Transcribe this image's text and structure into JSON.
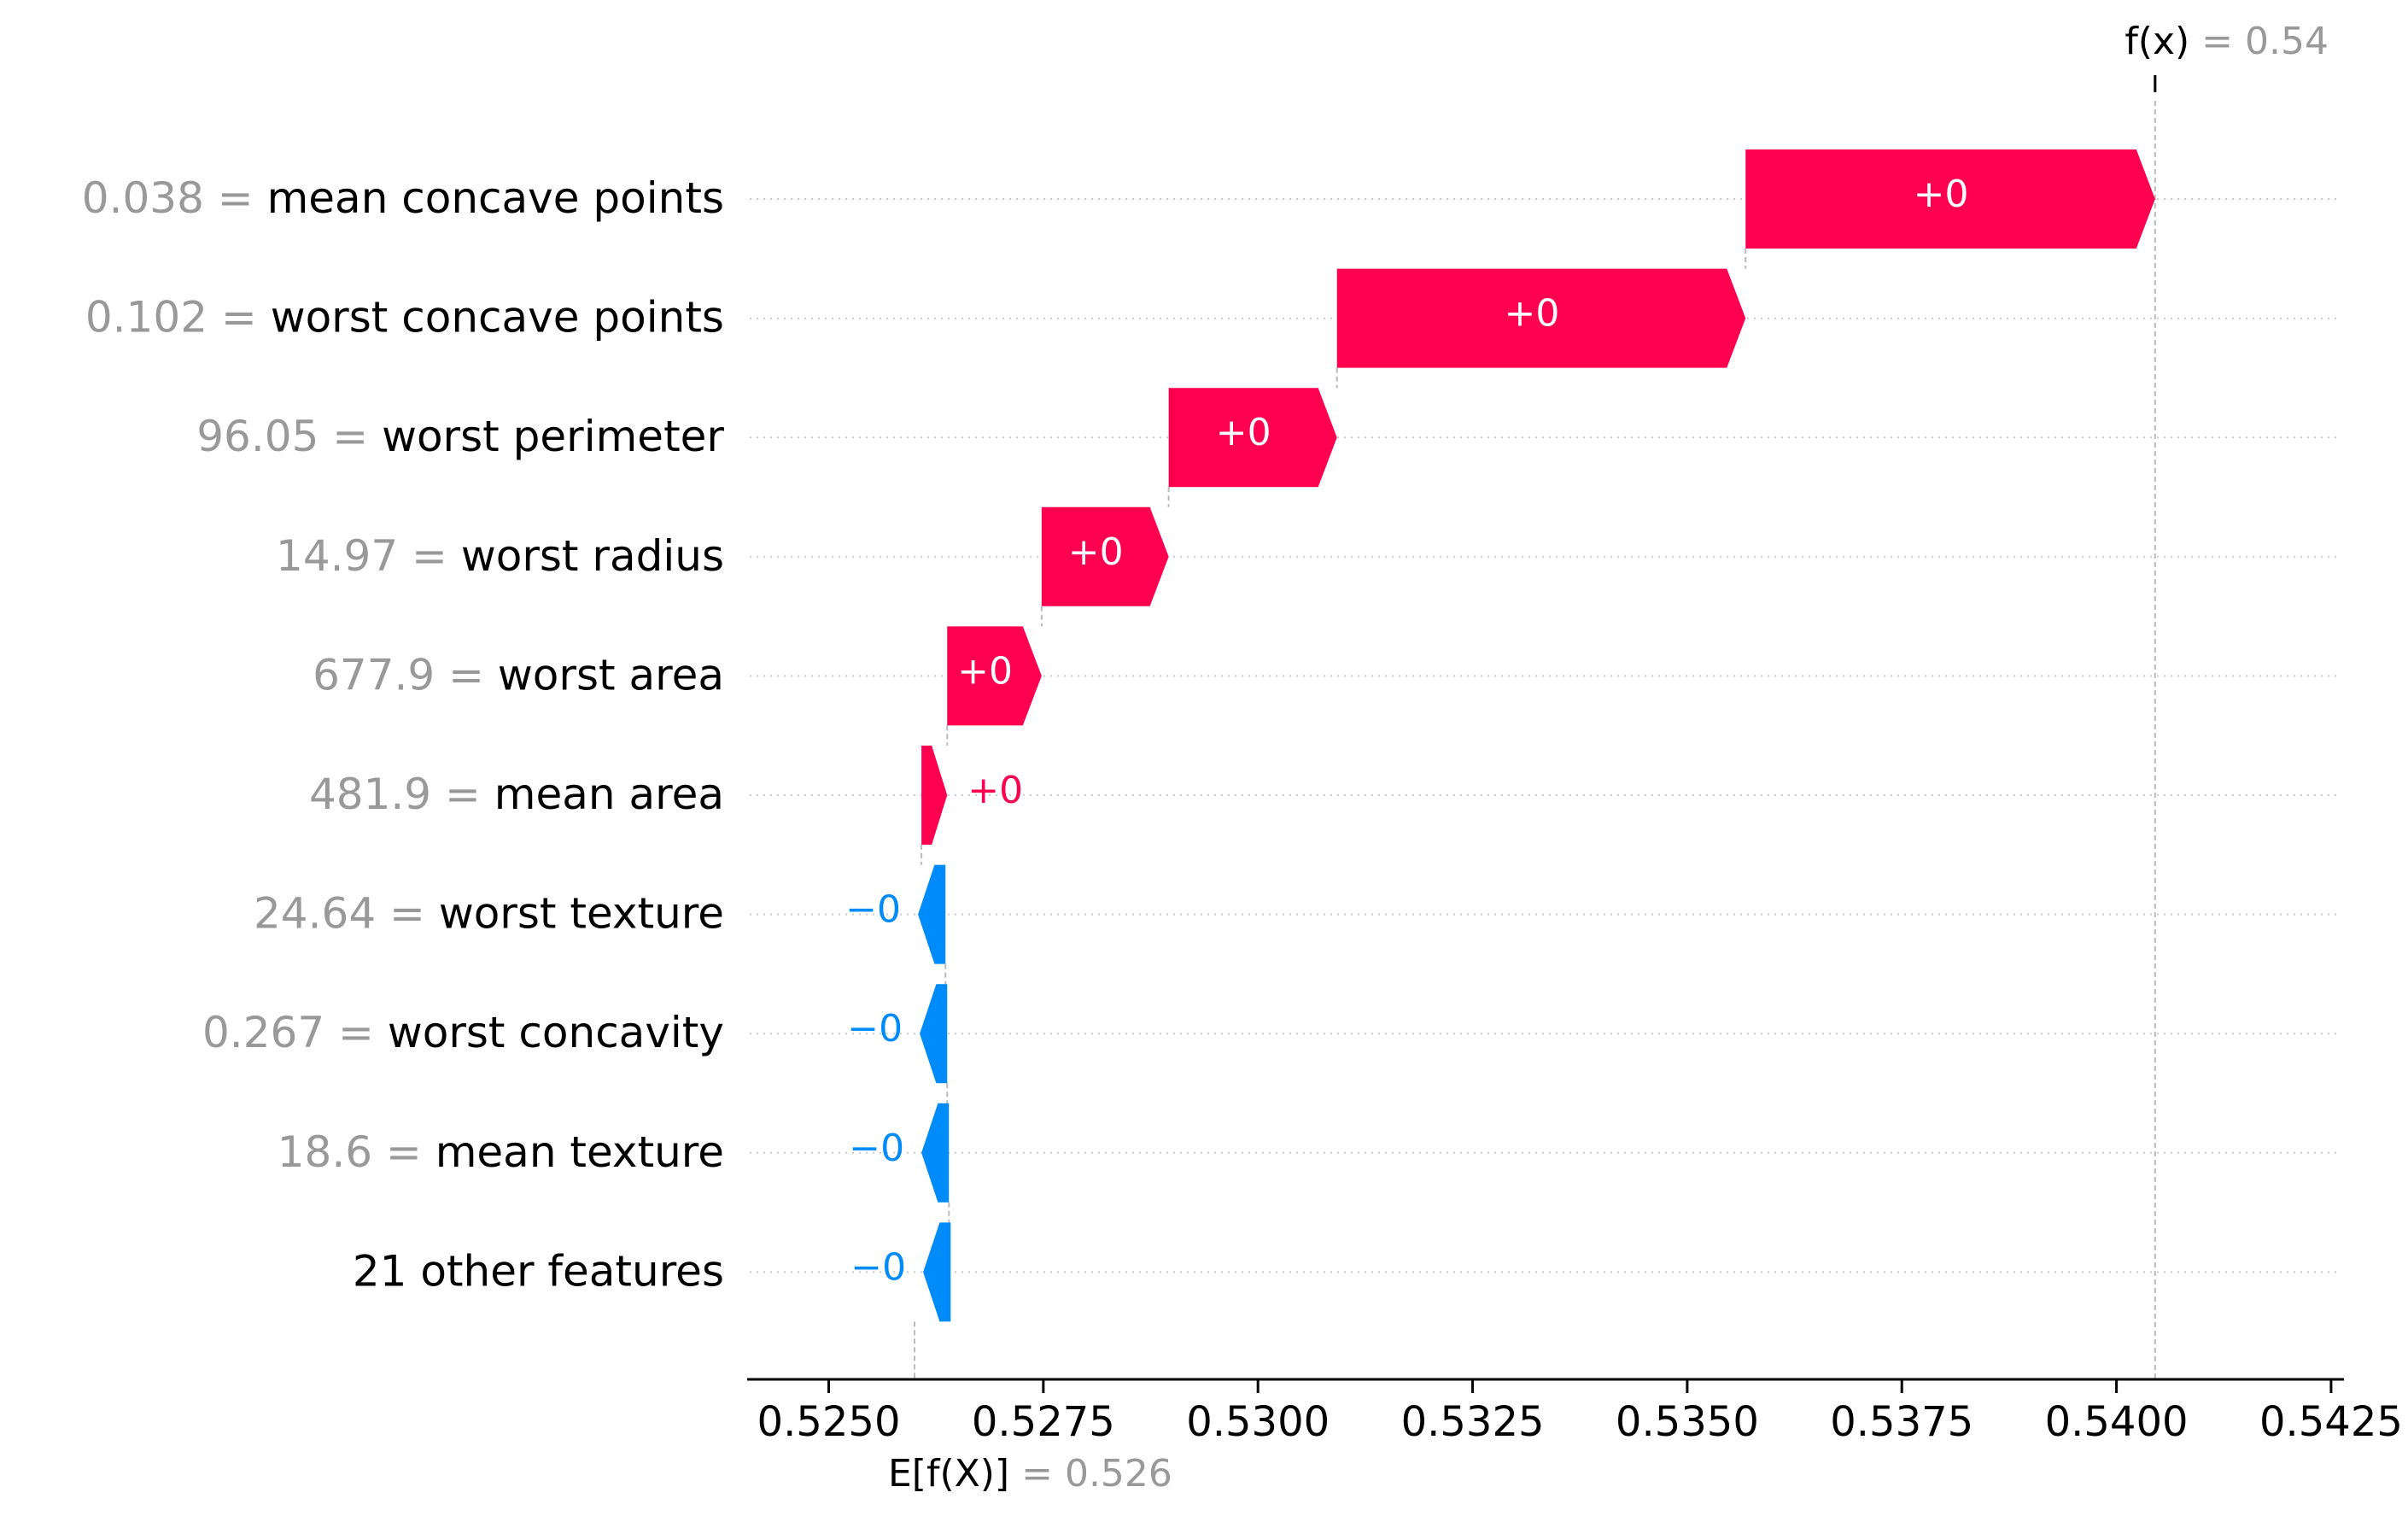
{
  "chart_data": {
    "type": "waterfall",
    "title": "",
    "xlabel": "",
    "ylabel": "",
    "xlim": [
      0.52405,
      0.54265
    ],
    "xticks": [
      0.525,
      0.5275,
      0.53,
      0.5325,
      0.535,
      0.5375,
      0.54,
      0.5425
    ],
    "xtick_labels": [
      "0.5250",
      "0.5275",
      "0.5300",
      "0.5325",
      "0.5350",
      "0.5375",
      "0.5400",
      "0.5425"
    ],
    "base_value": 0.526,
    "base_label": {
      "expr": "E[f(X)]",
      "eq": " = 0.526"
    },
    "output_value": 0.54,
    "output_label": {
      "expr": "f(x)",
      "eq": " = 0.54"
    },
    "positive_color": "#ff0051",
    "negative_color": "#008bfb",
    "features": [
      {
        "value_text": "0.038",
        "name": "mean concave points",
        "start": 0.53568,
        "end": 0.54045,
        "label": "+0"
      },
      {
        "value_text": "0.102",
        "name": "worst concave points",
        "start": 0.53092,
        "end": 0.53568,
        "label": "+0"
      },
      {
        "value_text": "96.05",
        "name": "worst perimeter",
        "start": 0.52896,
        "end": 0.53092,
        "label": "+0"
      },
      {
        "value_text": "14.97",
        "name": "worst radius",
        "start": 0.52748,
        "end": 0.52896,
        "label": "+0"
      },
      {
        "value_text": "677.9",
        "name": "worst area",
        "start": 0.52638,
        "end": 0.52748,
        "label": "+0"
      },
      {
        "value_text": "481.9",
        "name": "mean area",
        "start": 0.52608,
        "end": 0.52638,
        "label": "+0"
      },
      {
        "value_text": "24.64",
        "name": "worst texture",
        "start": 0.52636,
        "end": 0.52604,
        "label": "−0"
      },
      {
        "value_text": "0.267",
        "name": "worst concavity",
        "start": 0.52638,
        "end": 0.52606,
        "label": "−0"
      },
      {
        "value_text": "18.6",
        "name": "mean texture",
        "start": 0.5264,
        "end": 0.52608,
        "label": "−0"
      },
      {
        "value_text": "",
        "name": "21 other features",
        "start": 0.52642,
        "end": 0.5261,
        "label": "−0"
      }
    ]
  }
}
